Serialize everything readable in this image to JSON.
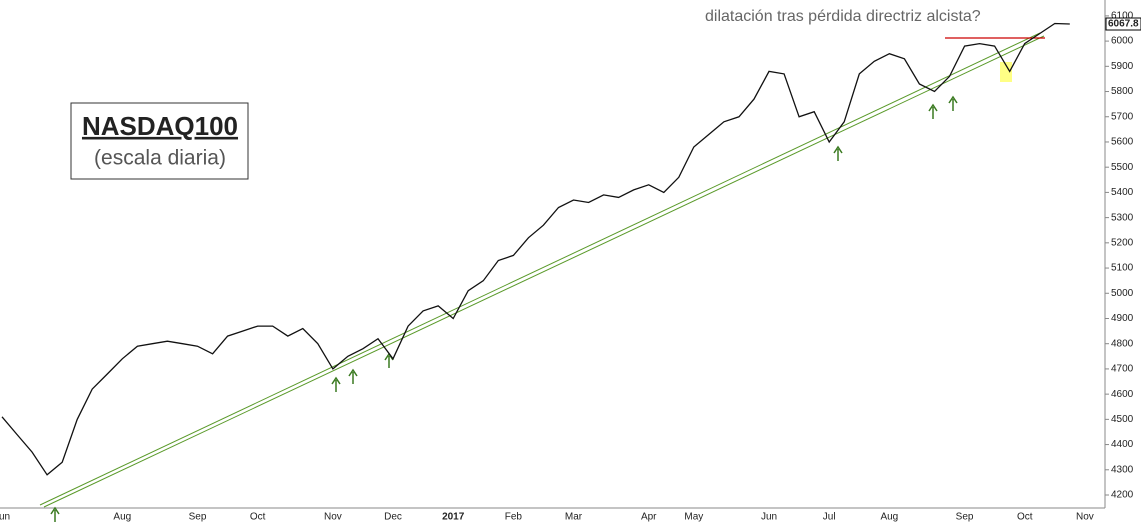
{
  "chart_data": {
    "type": "line",
    "title": "NASDAQ100",
    "subtitle": "(escala diaria)",
    "annotation": "dilatación tras pérdida directriz alcista?",
    "last_value": 6067.8,
    "color": "#111111",
    "categories": [
      "Jun",
      null,
      null,
      null,
      null,
      null,
      null,
      null,
      "Aug",
      null,
      null,
      null,
      null,
      "Sep",
      null,
      null,
      null,
      "Oct",
      null,
      null,
      null,
      null,
      "Nov",
      null,
      null,
      null,
      "Dec",
      null,
      null,
      null,
      "2017",
      null,
      null,
      null,
      "Feb",
      null,
      null,
      null,
      "Mar",
      null,
      null,
      null,
      null,
      "Apr",
      null,
      null,
      "May",
      null,
      null,
      null,
      null,
      "Jun",
      null,
      null,
      null,
      "Jul",
      null,
      null,
      null,
      "Aug",
      null,
      null,
      null,
      null,
      "Sep",
      null,
      null,
      null,
      "Oct",
      null,
      null,
      null,
      "Nov"
    ],
    "values": [
      4510,
      4440,
      4370,
      4280,
      4330,
      4500,
      4620,
      4680,
      4740,
      4790,
      4800,
      4810,
      4800,
      4790,
      4760,
      4830,
      4850,
      4870,
      4870,
      4830,
      4860,
      4800,
      4700,
      4750,
      4780,
      4820,
      4740,
      4870,
      4930,
      4950,
      4900,
      5010,
      5050,
      5130,
      5150,
      5220,
      5270,
      5340,
      5370,
      5360,
      5390,
      5380,
      5410,
      5430,
      5400,
      5460,
      5580,
      5630,
      5680,
      5700,
      5770,
      5880,
      5870,
      5700,
      5720,
      5600,
      5680,
      5870,
      5920,
      5950,
      5930,
      5830,
      5800,
      5860,
      5980,
      5990,
      5980,
      5880,
      5990,
      6030,
      6070,
      6067.8,
      null
    ],
    "ylim": [
      4085,
      6163
    ],
    "yticks": [
      4200,
      4300,
      4400,
      4500,
      4600,
      4700,
      4800,
      4900,
      5000,
      5100,
      5200,
      5300,
      5400,
      5500,
      5600,
      5700,
      5800,
      5900,
      6000,
      6100
    ]
  }
}
